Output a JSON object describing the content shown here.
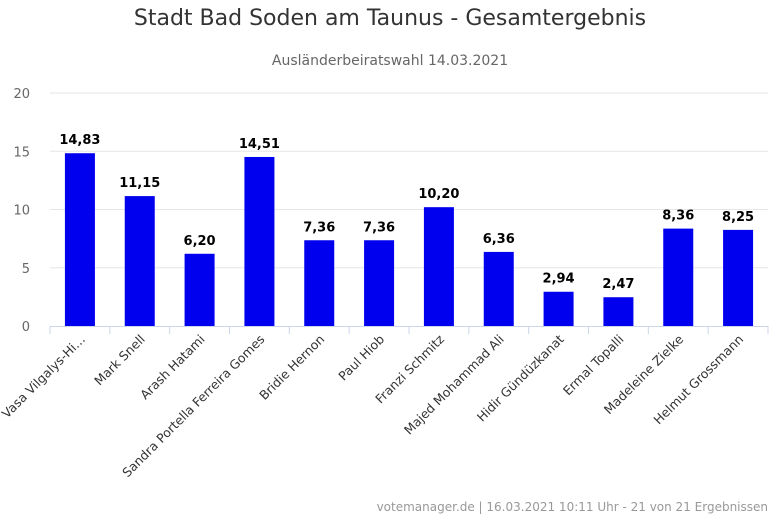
{
  "title": "Stadt Bad Soden am Taunus - Gesamtergebnis",
  "subtitle": "Ausländerbeiratswahl 14.03.2021",
  "footer": "votemanager.de | 16.03.2021 10:11 Uhr - 21 von 21 Ergebnissen",
  "colors": {
    "bar": "#0000ee",
    "grid": "#e6e6e6",
    "axis": "#ccd6eb"
  },
  "chart_data": {
    "type": "bar",
    "title": "Stadt Bad Soden am Taunus - Gesamtergebnis",
    "subtitle": "Ausländerbeiratswahl 14.03.2021",
    "xlabel": "",
    "ylabel": "",
    "ylim": [
      0,
      20
    ],
    "yticks": [
      "0",
      "5",
      "10",
      "15",
      "20"
    ],
    "grid": true,
    "legend": "none",
    "categories": [
      "Vasa Vilgalys-Hi…",
      "Mark Snell",
      "Arash Hatami",
      "Sandra Portella Ferreira Gomes",
      "Bridie Hernon",
      "Paul Hiob",
      "Franzi Schmitz",
      "Majed Mohammad Ali",
      "Hidir Gündüzkanat",
      "Ermal Topalli",
      "Madeleine Zielke",
      "Helmut Grossmann"
    ],
    "values": [
      14.83,
      11.15,
      6.2,
      14.51,
      7.36,
      7.36,
      10.2,
      6.36,
      2.94,
      2.47,
      8.36,
      8.25
    ],
    "value_labels": [
      "14,83",
      "11,15",
      "6,20",
      "14,51",
      "7,36",
      "7,36",
      "10,20",
      "6,36",
      "2,94",
      "2,47",
      "8,36",
      "8,25"
    ]
  }
}
